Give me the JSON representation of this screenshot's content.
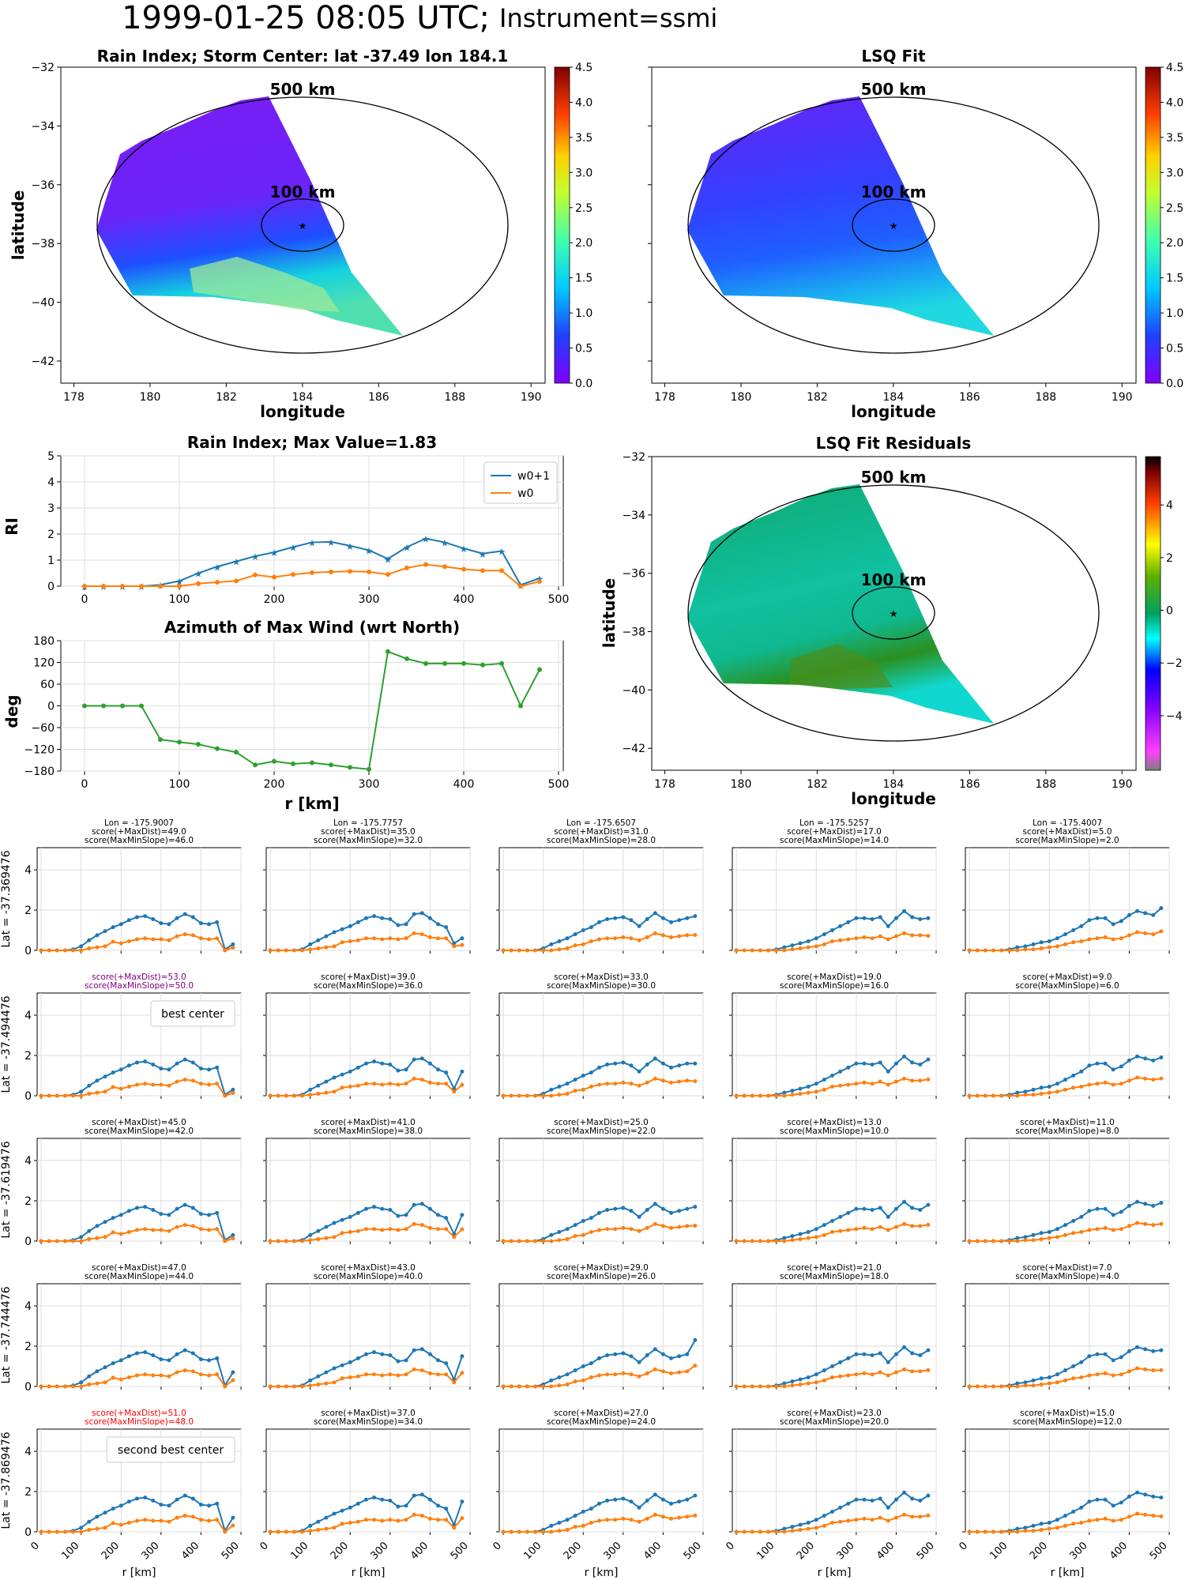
{
  "page_title": "1999-01-25 08:05 UTC;",
  "page_subtitle": "Instrument=ssmi",
  "colors": {
    "w0p1": "#1f77b4",
    "w0": "#ff7f0e",
    "azimuth": "#2ca02c",
    "best": "#800080",
    "second": "#ff0000",
    "rain_low": "#7a1cf5",
    "rain_mid": "#12d6d8",
    "rain_high": "#b4f04a",
    "residual": "#0fa56b"
  },
  "maps": {
    "rain": {
      "title": "Rain Index; Storm Center: lat -37.49 lon 184.1",
      "xlabel": "longitude",
      "ylabel": "latitude",
      "x_ticks": [
        "178",
        "180",
        "182",
        "184",
        "186",
        "188",
        "190"
      ],
      "y_ticks": [
        "−32",
        "−34",
        "−36",
        "−38",
        "−40",
        "−42"
      ],
      "label_500": "500 km",
      "label_100": "100 km",
      "colorbar_ticks": [
        "0.0",
        "0.5",
        "1.0",
        "1.5",
        "2.0",
        "2.5",
        "3.0",
        "3.5",
        "4.0",
        "4.5"
      ]
    },
    "lsq": {
      "title": "LSQ Fit",
      "xlabel": "longitude",
      "x_ticks": [
        "178",
        "180",
        "182",
        "184",
        "186",
        "188",
        "190"
      ],
      "label_500": "500 km",
      "label_100": "100 km",
      "colorbar_ticks": [
        "0.0",
        "0.5",
        "1.0",
        "1.5",
        "2.0",
        "2.5",
        "3.0",
        "3.5",
        "4.0",
        "4.5"
      ]
    },
    "residuals": {
      "title": "LSQ Fit Residuals",
      "xlabel": "longitude",
      "ylabel": "latitude",
      "x_ticks": [
        "178",
        "180",
        "182",
        "184",
        "186",
        "188",
        "190"
      ],
      "y_ticks": [
        "−32",
        "−34",
        "−36",
        "−38",
        "−40",
        "−42"
      ],
      "label_500": "500 km",
      "label_100": "100 km",
      "colorbar_ticks": [
        "4",
        "2",
        "0",
        "−2",
        "−4"
      ]
    }
  },
  "chart_data": [
    {
      "id": "rain_index",
      "type": "line",
      "title": "Rain Index; Max Value=1.83",
      "ylabel": "RI",
      "xlim": [
        -25,
        505
      ],
      "ylim": [
        0,
        5
      ],
      "x_ticks": [
        "0",
        "100",
        "200",
        "300",
        "400",
        "500"
      ],
      "y_ticks": [
        "0",
        "1",
        "2",
        "3",
        "4",
        "5"
      ],
      "legend_position": "top-right",
      "x": [
        0,
        20,
        40,
        60,
        80,
        100,
        120,
        140,
        160,
        180,
        200,
        220,
        240,
        260,
        280,
        300,
        320,
        340,
        360,
        380,
        400,
        420,
        440,
        460,
        480
      ],
      "series": [
        {
          "name": "w0+1",
          "values": [
            0,
            0,
            0,
            0,
            0.05,
            0.2,
            0.5,
            0.75,
            0.95,
            1.15,
            1.3,
            1.5,
            1.68,
            1.7,
            1.55,
            1.38,
            1.05,
            1.5,
            1.83,
            1.68,
            1.45,
            1.25,
            1.35,
            0.05,
            0.3
          ]
        },
        {
          "name": "w0",
          "values": [
            0,
            0,
            0,
            0,
            0,
            0,
            0.1,
            0.15,
            0.2,
            0.43,
            0.35,
            0.45,
            0.52,
            0.55,
            0.57,
            0.55,
            0.45,
            0.7,
            0.83,
            0.75,
            0.65,
            0.6,
            0.6,
            0,
            0.18
          ]
        }
      ]
    },
    {
      "id": "azimuth",
      "type": "line",
      "title": "Azimuth of Max Wind (wrt North)",
      "xlabel": "r [km]",
      "ylabel": "deg",
      "xlim": [
        -25,
        505
      ],
      "ylim": [
        -180,
        180
      ],
      "x_ticks": [
        "0",
        "100",
        "200",
        "300",
        "400",
        "500"
      ],
      "y_ticks": [
        "180",
        "120",
        "60",
        "0",
        "−60",
        "−120",
        "−180"
      ],
      "x": [
        0,
        20,
        40,
        60,
        80,
        100,
        120,
        140,
        160,
        180,
        200,
        220,
        240,
        260,
        280,
        300,
        320,
        340,
        360,
        380,
        400,
        420,
        440,
        460,
        480
      ],
      "series": [
        {
          "name": "",
          "values": [
            0,
            0,
            0,
            0,
            -93,
            -100,
            -106,
            -118,
            -128,
            -163,
            -153,
            -160,
            -157,
            -163,
            -170,
            -175,
            150,
            130,
            117,
            117,
            117,
            113,
            117,
            0,
            100
          ]
        }
      ]
    },
    {
      "id": "grid",
      "type": "line",
      "x_ticks": [
        "0",
        "100",
        "200",
        "300",
        "400",
        "500"
      ],
      "y_ticks": [
        "0",
        "2",
        "4"
      ],
      "xlabel": "r [km]",
      "row_labels": [
        "Lat = -37.369476",
        "Lat = -37.494476",
        "Lat = -37.619476",
        "Lat = -37.744476",
        "Lat = -37.869476"
      ],
      "panels": [
        {
          "row": 0,
          "col": 0,
          "lines": [
            "Lon = -175.9007",
            "score(+MaxDist)=49.0",
            "score(MaxMinSlope)=46.0"
          ],
          "variant": "a",
          "tail": 0.3
        },
        {
          "row": 0,
          "col": 1,
          "lines": [
            "Lon = -175.7757",
            "score(+MaxDist)=35.0",
            "score(MaxMinSlope)=32.0"
          ],
          "variant": "b",
          "tail": 0.6
        },
        {
          "row": 0,
          "col": 2,
          "lines": [
            "Lon = -175.6507",
            "score(+MaxDist)=31.0",
            "score(MaxMinSlope)=28.0"
          ],
          "variant": "c",
          "tail": 1.7
        },
        {
          "row": 0,
          "col": 3,
          "lines": [
            "Lon = -175.5257",
            "score(+MaxDist)=17.0",
            "score(MaxMinSlope)=14.0"
          ],
          "variant": "d",
          "tail": 1.6
        },
        {
          "row": 0,
          "col": 4,
          "lines": [
            "Lon = -175.4007",
            "score(+MaxDist)=5.0",
            "score(MaxMinSlope)=2.0"
          ],
          "variant": "e",
          "tail": 2.1
        },
        {
          "row": 1,
          "col": 0,
          "lines": [
            "score(+MaxDist)=53.0",
            "score(MaxMinSlope)=50.0"
          ],
          "variant": "a",
          "tail": 0.3,
          "color": "best",
          "annotation": "best center"
        },
        {
          "row": 1,
          "col": 1,
          "lines": [
            "score(+MaxDist)=39.0",
            "score(MaxMinSlope)=36.0"
          ],
          "variant": "b",
          "tail": 1.2
        },
        {
          "row": 1,
          "col": 2,
          "lines": [
            "score(+MaxDist)=33.0",
            "score(MaxMinSlope)=30.0"
          ],
          "variant": "c",
          "tail": 1.6
        },
        {
          "row": 1,
          "col": 3,
          "lines": [
            "score(+MaxDist)=19.0",
            "score(MaxMinSlope)=16.0"
          ],
          "variant": "d",
          "tail": 1.8
        },
        {
          "row": 1,
          "col": 4,
          "lines": [
            "score(+MaxDist)=9.0",
            "score(MaxMinSlope)=6.0"
          ],
          "variant": "e",
          "tail": 1.9
        },
        {
          "row": 2,
          "col": 0,
          "lines": [
            "score(+MaxDist)=45.0",
            "score(MaxMinSlope)=42.0"
          ],
          "variant": "a",
          "tail": 0.3
        },
        {
          "row": 2,
          "col": 1,
          "lines": [
            "score(+MaxDist)=41.0",
            "score(MaxMinSlope)=38.0"
          ],
          "variant": "b",
          "tail": 1.3
        },
        {
          "row": 2,
          "col": 2,
          "lines": [
            "score(+MaxDist)=25.0",
            "score(MaxMinSlope)=22.0"
          ],
          "variant": "c",
          "tail": 1.7
        },
        {
          "row": 2,
          "col": 3,
          "lines": [
            "score(+MaxDist)=13.0",
            "score(MaxMinSlope)=10.0"
          ],
          "variant": "d",
          "tail": 1.8
        },
        {
          "row": 2,
          "col": 4,
          "lines": [
            "score(+MaxDist)=11.0",
            "score(MaxMinSlope)=8.0"
          ],
          "variant": "e",
          "tail": 1.9
        },
        {
          "row": 3,
          "col": 0,
          "lines": [
            "score(+MaxDist)=47.0",
            "score(MaxMinSlope)=44.0"
          ],
          "variant": "a",
          "tail": 0.7
        },
        {
          "row": 3,
          "col": 1,
          "lines": [
            "score(+MaxDist)=43.0",
            "score(MaxMinSlope)=40.0"
          ],
          "variant": "b",
          "tail": 1.5
        },
        {
          "row": 3,
          "col": 2,
          "lines": [
            "score(+MaxDist)=29.0",
            "score(MaxMinSlope)=26.0"
          ],
          "variant": "c",
          "tail": 2.3
        },
        {
          "row": 3,
          "col": 3,
          "lines": [
            "score(+MaxDist)=21.0",
            "score(MaxMinSlope)=18.0"
          ],
          "variant": "d",
          "tail": 1.8
        },
        {
          "row": 3,
          "col": 4,
          "lines": [
            "score(+MaxDist)=7.0",
            "score(MaxMinSlope)=4.0"
          ],
          "variant": "e",
          "tail": 1.8
        },
        {
          "row": 4,
          "col": 0,
          "lines": [
            "score(+MaxDist)=51.0",
            "score(MaxMinSlope)=48.0"
          ],
          "variant": "a",
          "tail": 0.7,
          "color": "second",
          "annotation": "second best center"
        },
        {
          "row": 4,
          "col": 1,
          "lines": [
            "score(+MaxDist)=37.0",
            "score(MaxMinSlope)=34.0"
          ],
          "variant": "b",
          "tail": 1.5
        },
        {
          "row": 4,
          "col": 2,
          "lines": [
            "score(+MaxDist)=27.0",
            "score(MaxMinSlope)=24.0"
          ],
          "variant": "c",
          "tail": 1.8
        },
        {
          "row": 4,
          "col": 3,
          "lines": [
            "score(+MaxDist)=23.0",
            "score(MaxMinSlope)=20.0"
          ],
          "variant": "d",
          "tail": 1.8
        },
        {
          "row": 4,
          "col": 4,
          "lines": [
            "score(+MaxDist)=15.0",
            "score(MaxMinSlope)=12.0"
          ],
          "variant": "e",
          "tail": 1.7
        }
      ],
      "x": [
        0,
        20,
        40,
        60,
        80,
        100,
        120,
        140,
        160,
        180,
        200,
        220,
        240,
        260,
        280,
        300,
        320,
        340,
        360,
        380,
        400,
        420,
        440,
        460,
        480
      ],
      "profiles": {
        "a": {
          "w0p1": [
            0,
            0,
            0,
            0,
            0.05,
            0.2,
            0.5,
            0.75,
            0.95,
            1.15,
            1.3,
            1.5,
            1.65,
            1.7,
            1.55,
            1.35,
            1.3,
            1.6,
            1.8,
            1.65,
            1.35,
            1.3,
            1.4,
            0.05
          ],
          "w0": [
            0,
            0,
            0,
            0,
            0,
            0,
            0.1,
            0.15,
            0.2,
            0.43,
            0.35,
            0.45,
            0.55,
            0.6,
            0.55,
            0.55,
            0.5,
            0.7,
            0.8,
            0.75,
            0.6,
            0.55,
            0.6,
            0
          ]
        },
        "b": {
          "w0p1": [
            0,
            0,
            0,
            0,
            0.05,
            0.3,
            0.5,
            0.7,
            0.9,
            1.05,
            1.2,
            1.4,
            1.6,
            1.7,
            1.6,
            1.55,
            1.25,
            1.3,
            1.8,
            1.85,
            1.6,
            1.3,
            1.15,
            0.35
          ],
          "w0": [
            0,
            0,
            0,
            0,
            0,
            0.05,
            0.1,
            0.15,
            0.2,
            0.4,
            0.45,
            0.5,
            0.6,
            0.6,
            0.55,
            0.6,
            0.55,
            0.6,
            0.85,
            0.8,
            0.65,
            0.6,
            0.6,
            0.2
          ]
        },
        "c": {
          "w0p1": [
            0,
            0,
            0,
            0,
            0,
            0.1,
            0.3,
            0.45,
            0.6,
            0.8,
            1.0,
            1.15,
            1.4,
            1.55,
            1.6,
            1.65,
            1.5,
            1.2,
            1.55,
            1.85,
            1.6,
            1.4,
            1.5,
            1.6
          ],
          "w0": [
            0,
            0,
            0,
            0,
            0,
            0,
            0,
            0.05,
            0.1,
            0.25,
            0.3,
            0.45,
            0.55,
            0.6,
            0.6,
            0.65,
            0.6,
            0.5,
            0.65,
            0.85,
            0.75,
            0.65,
            0.7,
            0.75
          ]
        },
        "d": {
          "w0p1": [
            0,
            0,
            0,
            0,
            0,
            0.05,
            0.15,
            0.25,
            0.35,
            0.45,
            0.6,
            0.8,
            1.0,
            1.2,
            1.4,
            1.6,
            1.6,
            1.55,
            1.65,
            1.2,
            1.6,
            1.95,
            1.65,
            1.55
          ],
          "w0": [
            0,
            0,
            0,
            0,
            0,
            0,
            0,
            0.05,
            0.1,
            0.15,
            0.2,
            0.3,
            0.45,
            0.5,
            0.55,
            0.6,
            0.65,
            0.6,
            0.7,
            0.55,
            0.7,
            0.85,
            0.75,
            0.75
          ]
        },
        "e": {
          "w0p1": [
            0,
            0,
            0,
            0,
            0,
            0.05,
            0.15,
            0.2,
            0.3,
            0.4,
            0.45,
            0.6,
            0.8,
            1.0,
            1.2,
            1.5,
            1.6,
            1.6,
            1.3,
            1.45,
            1.75,
            1.95,
            1.85,
            1.75
          ],
          "w0": [
            0,
            0,
            0,
            0,
            0,
            0,
            0,
            0.05,
            0.05,
            0.1,
            0.15,
            0.2,
            0.3,
            0.4,
            0.45,
            0.55,
            0.6,
            0.65,
            0.55,
            0.6,
            0.75,
            0.9,
            0.85,
            0.8
          ]
        }
      }
    }
  ]
}
